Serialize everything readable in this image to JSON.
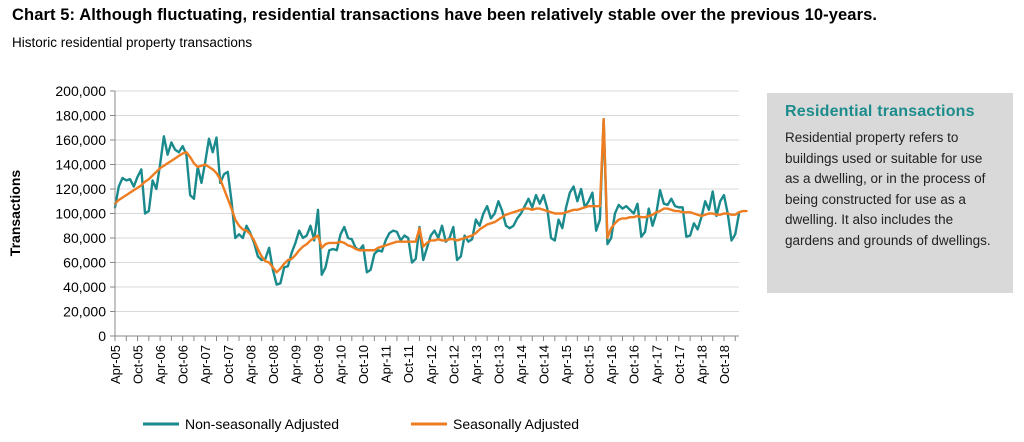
{
  "header": {
    "title": "Chart 5: Although fluctuating, residential transactions have been relatively stable over the previous 10-years.",
    "subtitle": "Historic residential property transactions"
  },
  "infobox": {
    "heading": "Residential transactions",
    "body": "Residential property refers to buildings used or suitable for use as a dwelling, or in the process of being constructed for use as a dwelling. It also includes the gardens and grounds of dwellings."
  },
  "colors": {
    "non_seasonal": "#1a8a8c",
    "seasonal": "#ee7d22",
    "infobox_bg": "#d9d9d9",
    "heading": "#1d8c8c"
  },
  "chart_data": {
    "type": "line",
    "title": "",
    "xlabel": "",
    "ylabel": "Transactions",
    "ylim": [
      0,
      200000
    ],
    "yticks": [
      0,
      20000,
      40000,
      60000,
      80000,
      100000,
      120000,
      140000,
      160000,
      180000,
      200000
    ],
    "ytick_labels": [
      "0",
      "20,000",
      "40,000",
      "60,000",
      "80,000",
      "100,000",
      "120,000",
      "140,000",
      "160,000",
      "180,000",
      "200,000"
    ],
    "xtick_labels": [
      "Apr-05",
      "Oct-05",
      "Apr-06",
      "Oct-06",
      "Apr-07",
      "Oct-07",
      "Apr-08",
      "Oct-08",
      "Apr-09",
      "Oct-09",
      "Apr-10",
      "Oct-10",
      "Apr-11",
      "Oct-11",
      "Apr-12",
      "Oct-12",
      "Apr-13",
      "Oct-13",
      "Apr-14",
      "Oct-14",
      "Apr-15",
      "Oct-15",
      "Apr-16",
      "Oct-16",
      "Apr-17",
      "Oct-17",
      "Apr-18",
      "Oct-18"
    ],
    "x_start": "Apr-05",
    "x_frequency": "monthly",
    "grid": true,
    "legend_position": "bottom",
    "series": [
      {
        "name": "Non-seasonally Adjusted",
        "color": "#1a8a8c",
        "values": [
          105000,
          122000,
          129000,
          127000,
          128000,
          122000,
          130000,
          136000,
          100000,
          102000,
          127000,
          120000,
          140000,
          163000,
          148000,
          158000,
          152000,
          150000,
          155000,
          148000,
          115000,
          112000,
          138000,
          125000,
          142000,
          161000,
          150000,
          162000,
          125000,
          132000,
          134000,
          110000,
          80000,
          83000,
          80000,
          90000,
          84000,
          76000,
          65000,
          62000,
          63000,
          72000,
          54000,
          42000,
          43000,
          56000,
          57000,
          68000,
          76000,
          86000,
          80000,
          82000,
          90000,
          78000,
          103000,
          50000,
          56000,
          70000,
          71000,
          70000,
          83000,
          89000,
          80000,
          79000,
          72000,
          70000,
          74000,
          52000,
          54000,
          67000,
          70000,
          69000,
          78000,
          84000,
          86000,
          85000,
          78000,
          82000,
          80000,
          60000,
          63000,
          89000,
          62000,
          72000,
          82000,
          86000,
          80000,
          90000,
          77000,
          80000,
          89000,
          62000,
          65000,
          82000,
          77000,
          79000,
          95000,
          90000,
          100000,
          106000,
          96000,
          100000,
          110000,
          102000,
          90000,
          88000,
          90000,
          96000,
          100000,
          106000,
          112000,
          105000,
          115000,
          108000,
          115000,
          104000,
          80000,
          78000,
          95000,
          88000,
          105000,
          117000,
          122000,
          110000,
          120000,
          105000,
          110000,
          117000,
          86000,
          95000,
          177000,
          75000,
          80000,
          100000,
          107000,
          104000,
          106000,
          103000,
          100000,
          108000,
          81000,
          85000,
          104000,
          90000,
          100000,
          119000,
          108000,
          107000,
          112000,
          106000,
          105000,
          105000,
          81000,
          82000,
          92000,
          87000,
          97000,
          110000,
          103000,
          118000,
          98000,
          110000,
          115000,
          100000,
          78000,
          83000,
          100000
        ]
      },
      {
        "name": "Seasonally Adjusted",
        "color": "#ee7d22",
        "values": [
          108000,
          111000,
          113000,
          115000,
          117000,
          119000,
          121000,
          123000,
          126000,
          128000,
          131000,
          134000,
          137000,
          139000,
          141000,
          143000,
          145000,
          147000,
          149000,
          150000,
          146000,
          141000,
          138000,
          139000,
          140000,
          138000,
          136000,
          133000,
          128000,
          120000,
          112000,
          104000,
          95000,
          90000,
          87000,
          86000,
          83000,
          78000,
          71000,
          65000,
          61000,
          60000,
          56000,
          52000,
          55000,
          59000,
          62000,
          63000,
          66000,
          70000,
          73000,
          75000,
          78000,
          80000,
          82000,
          72000,
          75000,
          76000,
          76000,
          76000,
          77000,
          76000,
          74000,
          73000,
          71000,
          70000,
          70000,
          70000,
          70000,
          70000,
          72000,
          73000,
          74000,
          75000,
          76000,
          77000,
          77000,
          77000,
          77000,
          77000,
          77000,
          88000,
          73000,
          76000,
          78000,
          78000,
          79000,
          78000,
          78000,
          79000,
          79000,
          78000,
          79000,
          80000,
          81000,
          82000,
          84000,
          87000,
          89000,
          91000,
          92000,
          93000,
          95000,
          97000,
          99000,
          100000,
          101000,
          102000,
          103000,
          104000,
          104000,
          103000,
          104000,
          104000,
          103000,
          102000,
          101000,
          100000,
          100000,
          100000,
          101000,
          102000,
          103000,
          103000,
          104000,
          105000,
          106000,
          106000,
          106000,
          106000,
          177000,
          80000,
          88000,
          92000,
          95000,
          96000,
          96000,
          97000,
          97000,
          98000,
          97000,
          97000,
          98000,
          99000,
          101000,
          102000,
          104000,
          104000,
          103000,
          102000,
          102000,
          101000,
          101000,
          101000,
          100000,
          99000,
          98000,
          99000,
          100000,
          100000,
          99000,
          99000,
          100000,
          100000,
          99000,
          99000,
          101000,
          102000,
          102000
        ]
      }
    ]
  }
}
